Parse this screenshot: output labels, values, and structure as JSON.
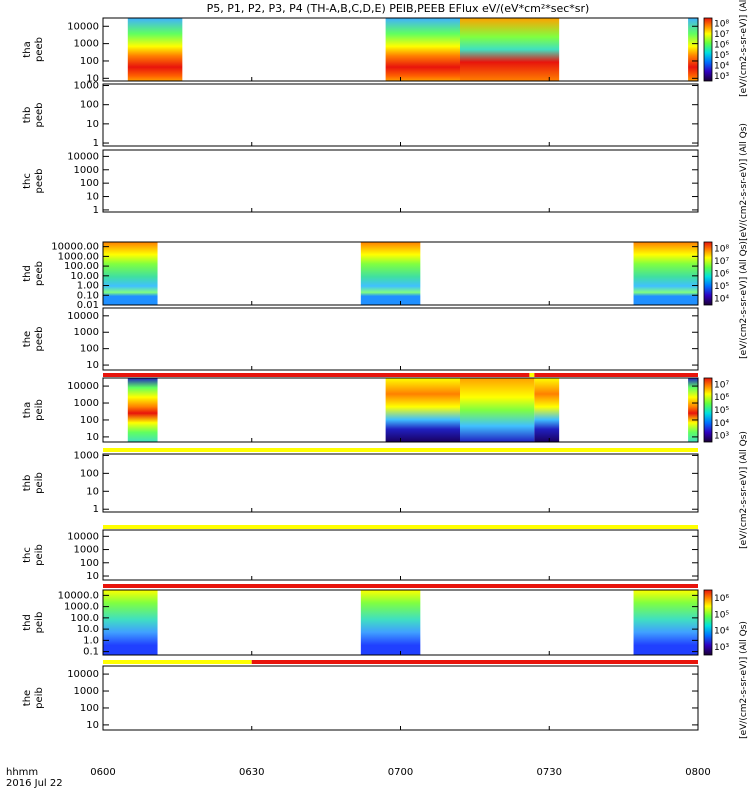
{
  "title": "P5, P1, P2, P3, P4 (TH-A,B,C,D,E) PEIB,PEEB EFlux eV/(eV*cm²*sec*sr)",
  "colorbar_top": "[eV/(cm2-s-sr-eV)] (All Qs)",
  "colorbar_mid": "[eV/(cm2-s-sr-eV)] (All Qs)",
  "colorbar_peeb_big": "[eV/(cm2-s-sr-eV)] (All Qs)",
  "colorbar_peib_big": "[eV/(cm2-s-sr-eV)] (All Qs)",
  "colorbar_lower": "[eV/(cm2-s-sr-eV)] (All Qs)",
  "xaxis": {
    "tick_labels": [
      "0600",
      "0630",
      "0700",
      "0730",
      "0800"
    ],
    "corner_label": "hhmm",
    "date": "2016 Jul 22"
  },
  "colors": {
    "red": "#e8140c",
    "yellow": "#ffff00",
    "black": "#000000"
  },
  "chart_data": {
    "type": "heatmap",
    "x_range": [
      "06:00",
      "08:00"
    ],
    "panels": [
      {
        "probe": "tha",
        "product": "peeb",
        "yticks": [
          "10",
          "100",
          "1000",
          "10000"
        ],
        "ylim": [
          7,
          30000
        ],
        "blocks": [
          [
            "06:05",
            "06:16"
          ],
          [
            "06:57",
            "07:12"
          ],
          [
            "07:12",
            "07:32"
          ],
          [
            "07:58",
            "08:00"
          ]
        ],
        "colorbar_ticks": [
          "10³",
          "10⁴",
          "10⁵",
          "10⁶",
          "10⁷",
          "10⁸"
        ]
      },
      {
        "probe": "thb",
        "product": "peeb",
        "yticks": [
          "1",
          "10",
          "100",
          "1000"
        ],
        "ylim": [
          0.7,
          1200
        ],
        "blocks": []
      },
      {
        "probe": "thc",
        "product": "peeb",
        "yticks": [
          "1",
          "10",
          "100",
          "1000",
          "10000"
        ],
        "ylim": [
          0.7,
          30000
        ],
        "blocks": []
      },
      {
        "probe": "thd",
        "product": "peeb",
        "yticks": [
          "0.01",
          "0.10",
          "1.00",
          "10.00",
          "100.00",
          "1000.00",
          "10000.00"
        ],
        "ylim": [
          0.01,
          30000
        ],
        "blocks": [
          [
            "06:00",
            "06:11"
          ],
          [
            "06:52",
            "07:04"
          ],
          [
            "07:47",
            "08:00"
          ]
        ],
        "colorbar_ticks": [
          "10⁴",
          "10⁵",
          "10⁶",
          "10⁷",
          "10⁸"
        ]
      },
      {
        "probe": "the",
        "product": "peeb",
        "yticks": [
          "10",
          "100",
          "1000",
          "10000"
        ],
        "ylim": [
          5,
          30000
        ],
        "blocks": []
      },
      {
        "probe": "tha",
        "product": "peib",
        "yticks": [
          "10",
          "100",
          "1000",
          "10000"
        ],
        "ylim": [
          5,
          30000
        ],
        "blocks": [
          [
            "06:05",
            "06:11"
          ],
          [
            "06:57",
            "07:12"
          ],
          [
            "07:12",
            "07:27"
          ],
          [
            "07:27",
            "07:32"
          ],
          [
            "07:58",
            "08:00"
          ]
        ],
        "colorbar_ticks": [
          "10³",
          "10⁴",
          "10⁵",
          "10⁶",
          "10⁷"
        ]
      },
      {
        "probe": "thb",
        "product": "peib",
        "yticks": [
          "1",
          "10",
          "100",
          "1000"
        ],
        "ylim": [
          0.7,
          1200
        ],
        "blocks": []
      },
      {
        "probe": "thc",
        "product": "peib",
        "yticks": [
          "10",
          "100",
          "1000",
          "10000"
        ],
        "ylim": [
          5,
          30000
        ],
        "blocks": []
      },
      {
        "probe": "thd",
        "product": "peib",
        "yticks": [
          "0.1",
          "1.0",
          "10.0",
          "100.0",
          "1000.0",
          "10000.0"
        ],
        "ylim": [
          0.05,
          30000
        ],
        "blocks": [
          [
            "06:00",
            "06:11"
          ],
          [
            "06:52",
            "07:04"
          ],
          [
            "07:47",
            "08:00"
          ]
        ],
        "colorbar_ticks": [
          "10³",
          "10⁴",
          "10⁵",
          "10⁶"
        ]
      },
      {
        "probe": "the",
        "product": "peib",
        "yticks": [
          "10",
          "100",
          "1000",
          "10000"
        ],
        "ylim": [
          5,
          30000
        ],
        "blocks": []
      }
    ],
    "mode_bars": [
      {
        "above_panel": 6,
        "segments": [
          [
            "06:00",
            "07:26",
            "red"
          ],
          [
            "07:26",
            "07:27",
            "yellow"
          ],
          [
            "07:27",
            "08:00",
            "red"
          ]
        ]
      },
      {
        "above_panel": 7,
        "segments": [
          [
            "06:00",
            "08:00",
            "yellow"
          ]
        ]
      },
      {
        "above_panel": 8,
        "segments": [
          [
            "06:00",
            "08:00",
            "yellow"
          ]
        ]
      },
      {
        "above_panel": 9,
        "segments": [
          [
            "06:00",
            "08:00",
            "red"
          ]
        ]
      },
      {
        "above_panel": 10,
        "segments": [
          [
            "06:00",
            "06:30",
            "yellow"
          ],
          [
            "06:30",
            "08:00",
            "red"
          ]
        ]
      }
    ]
  }
}
